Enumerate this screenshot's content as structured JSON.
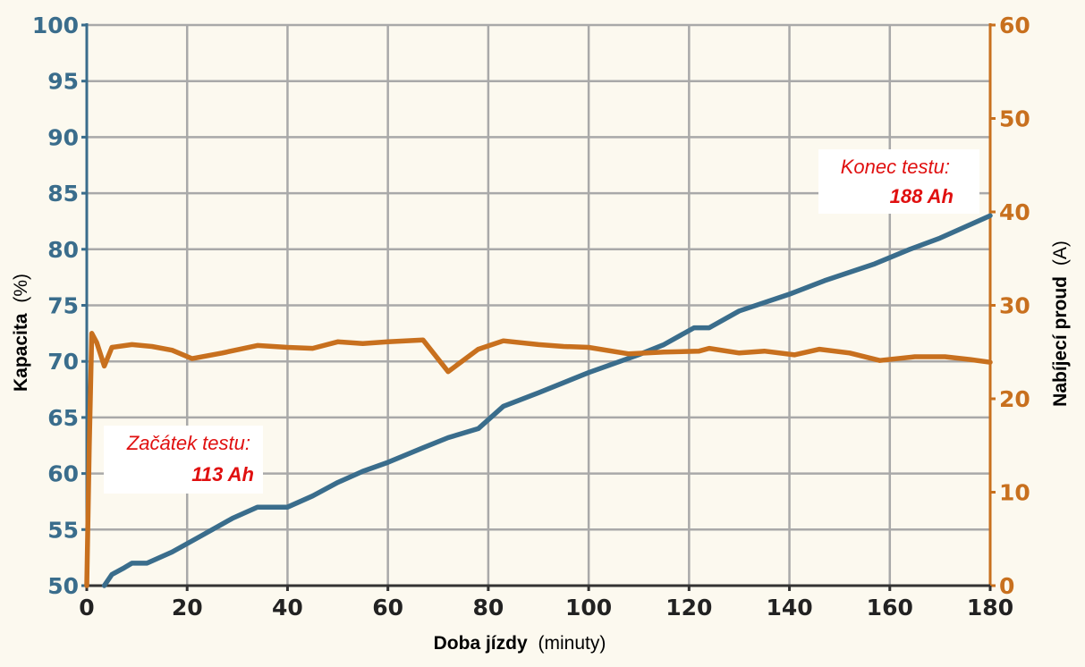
{
  "chart_data": {
    "type": "line",
    "x_axis": {
      "label_bold": "Doba jízdy",
      "label_rest": "(minuty)",
      "range": [
        0,
        180
      ],
      "ticks": [
        0,
        20,
        40,
        60,
        80,
        100,
        120,
        140,
        160,
        180
      ]
    },
    "y_axis_left": {
      "label_bold": "Kapacita",
      "label_rest": "(%)",
      "range": [
        50,
        100
      ],
      "ticks": [
        50,
        55,
        60,
        65,
        70,
        75,
        80,
        85,
        90,
        95,
        100
      ],
      "color": "#3a6d8c"
    },
    "y_axis_right": {
      "label_bold": "Nabíjecí proud",
      "label_rest": "(A)",
      "range": [
        0,
        60
      ],
      "ticks": [
        0,
        10,
        20,
        30,
        40,
        50,
        60
      ],
      "color": "#c8701e"
    },
    "grid": true,
    "series": [
      {
        "name": "Kapacita",
        "axis": "left",
        "color": "#3a6d8c",
        "x": [
          3.5,
          5,
          7.5,
          9,
          12,
          17,
          23,
          29,
          34,
          40,
          45,
          50,
          55,
          60,
          67,
          72,
          78,
          83,
          90,
          100,
          110,
          115,
          121,
          124,
          130,
          140,
          147,
          157,
          164,
          170,
          180
        ],
        "y": [
          50,
          51,
          51.6,
          52,
          52,
          53,
          54.5,
          56,
          57,
          57,
          58,
          59.2,
          60.2,
          61,
          62.3,
          63.2,
          64,
          66,
          67.2,
          69,
          70.6,
          71.5,
          73,
          73,
          74.5,
          76,
          77.2,
          78.7,
          80,
          81,
          83
        ]
      },
      {
        "name": "Nabíjecí proud",
        "axis": "right",
        "color": "#c8701e",
        "x": [
          0,
          0.5,
          1,
          2,
          3.5,
          5,
          9,
          13,
          17,
          21,
          27,
          34,
          40,
          45,
          50,
          55,
          60,
          67,
          72,
          78,
          83,
          90,
          95,
          100,
          108,
          115,
          122,
          124,
          130,
          135,
          141,
          146,
          152,
          158,
          165,
          171,
          176,
          180
        ],
        "y": [
          0,
          15,
          27,
          26,
          23.5,
          25.5,
          25.8,
          25.6,
          25.2,
          24.3,
          24.9,
          25.7,
          25.5,
          25.4,
          26.1,
          25.9,
          26.1,
          26.3,
          22.9,
          25.3,
          26.2,
          25.8,
          25.6,
          25.5,
          24.8,
          25,
          25.1,
          25.4,
          24.9,
          25.1,
          24.7,
          25.3,
          24.9,
          24.1,
          24.5,
          24.5,
          24.2,
          23.9
        ]
      }
    ],
    "annotations": [
      {
        "line1": "Začátek testu:",
        "line2": "113 Ah"
      },
      {
        "line1": "Konec testu:",
        "line2": "188 Ah"
      }
    ]
  }
}
